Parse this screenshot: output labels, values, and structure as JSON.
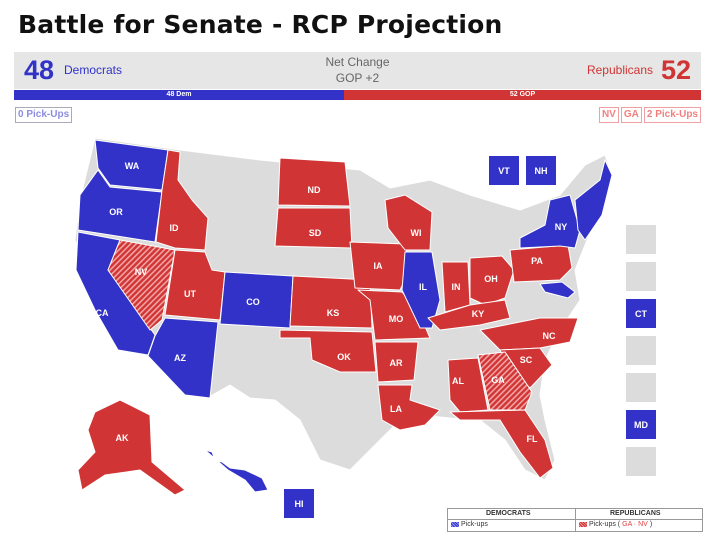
{
  "title": "Battle for Senate - RCP Projection",
  "summary": {
    "dem_seats": "48",
    "dem_label": "Democrats",
    "rep_seats": "52",
    "rep_label": "Republicans",
    "net_change_label": "Net Change",
    "net_change_value": "GOP +2",
    "dem_bar_label": "48 Dem",
    "rep_bar_label": "52 GOP",
    "dem_fraction": 0.48,
    "rep_fraction": 0.52
  },
  "pickups": {
    "dem": "0 Pick-Ups",
    "rep_states": [
      "NV",
      "GA"
    ],
    "rep": "2 Pick-Ups"
  },
  "colors": {
    "dem": "#3232c8",
    "rep": "#d03434",
    "none": "#dcdcdc",
    "pickup_rep": "#d03434"
  },
  "states": {
    "WA": "WA",
    "OR": "OR",
    "CA": "CA",
    "NV": "NV",
    "ID": "ID",
    "UT": "UT",
    "AZ": "AZ",
    "CO": "CO",
    "ND": "ND",
    "SD": "SD",
    "KS": "KS",
    "OK": "OK",
    "IA": "IA",
    "MO": "MO",
    "AR": "AR",
    "LA": "LA",
    "WI": "WI",
    "IL": "IL",
    "IN": "IN",
    "OH": "OH",
    "KY": "KY",
    "PA": "PA",
    "NY": "NY",
    "NC": "NC",
    "SC": "SC",
    "GA": "GA",
    "AL": "AL",
    "FL": "FL",
    "AK": "AK",
    "HI": "HI"
  },
  "small_states": {
    "VT": "VT",
    "NH": "NH",
    "CT": "CT",
    "MD": "MD"
  },
  "legend": {
    "dem_header": "DEMOCRATS",
    "rep_header": "REPUBLICANS",
    "dem_item": "Pick-ups",
    "rep_item_prefix": "Pick-ups (",
    "rep_item_states": "GA · NV",
    "rep_item_suffix": ")"
  }
}
